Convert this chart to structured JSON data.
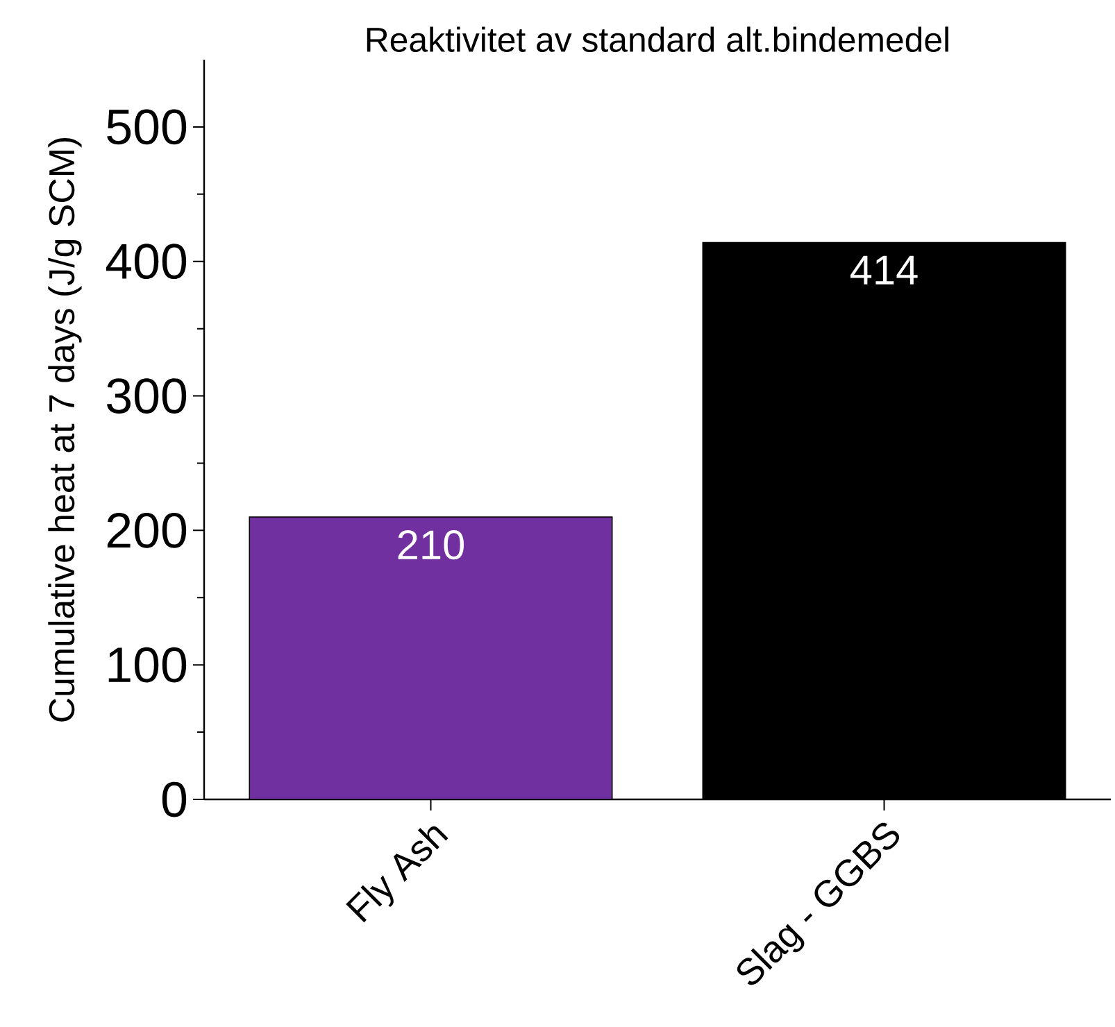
{
  "chart_data": {
    "type": "bar",
    "title": "Reaktivitet av standard alt.bindemedel",
    "ylabel": "Cumulative heat at 7 days (J/g SCM)",
    "categories": [
      "Fly Ash",
      "Slag - GGBS"
    ],
    "values": [
      210,
      414
    ],
    "colors": [
      "#7030a0",
      "#000000"
    ],
    "ylim": [
      0,
      550
    ],
    "yticks": [
      0,
      100,
      200,
      300,
      400,
      500
    ],
    "data_labels": true
  }
}
